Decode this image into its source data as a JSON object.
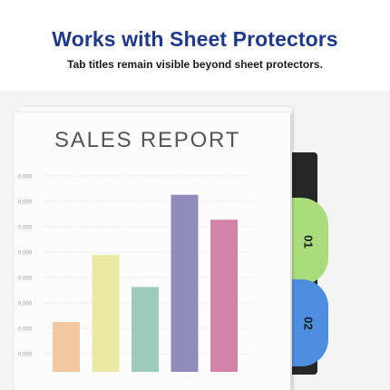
{
  "header": {
    "title": "Works with Sheet Protectors",
    "subtitle": "Tab titles remain visible beyond sheet protectors."
  },
  "document": {
    "title": "SALES REPORT"
  },
  "chart_data": {
    "type": "bar",
    "y_tick_labels": [
      "0,000",
      "0,000",
      "0,000",
      "0,000",
      "0,000",
      "0,000",
      "0,000",
      "0,000"
    ],
    "values": [
      2,
      4.7,
      3.4,
      7.1,
      6.1
    ],
    "colors": [
      "#f2c9a0",
      "#eaeaa4",
      "#9ccbbb",
      "#8f8bbd",
      "#d483a8"
    ],
    "ylim": [
      0,
      8
    ],
    "grid": true
  },
  "tabs": [
    {
      "label": "01",
      "color": "#a9dc7b"
    },
    {
      "label": "02",
      "color": "#4d8ee0"
    }
  ],
  "colors": {
    "headline": "#1f3a8a",
    "binder": "#262626"
  }
}
